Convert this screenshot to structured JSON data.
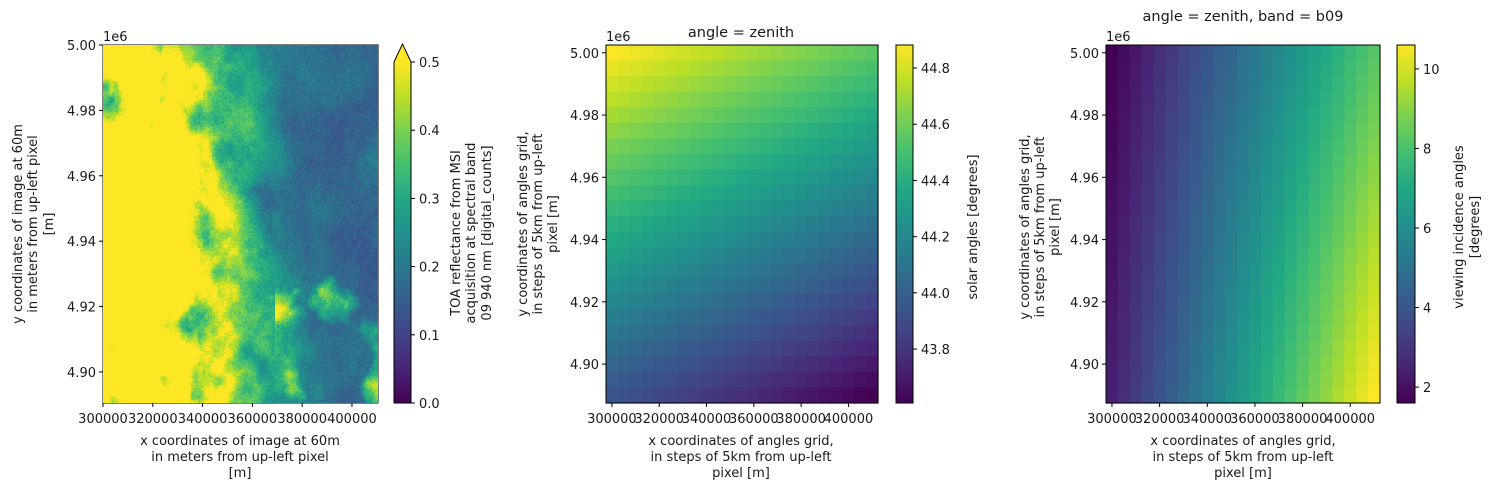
{
  "chart_data": [
    {
      "type": "heatmap",
      "title": "",
      "offset_label": "1e6",
      "cmap": "viridis",
      "xlabel": [
        "x coordinates of image at 60m",
        "in meters from up-left pixel",
        "[m]"
      ],
      "ylabel": [
        "y coordinates of image at 60m",
        "in meters from up-left pixel",
        "[m]"
      ],
      "xlim": [
        300000,
        410460
      ],
      "ylim": [
        4.8905,
        5.0
      ],
      "xticks": {
        "values": [
          300000,
          320000,
          340000,
          360000,
          380000,
          400000
        ],
        "labels": [
          "300000",
          "320000",
          "340000",
          "360000",
          "380000",
          "400000"
        ]
      },
      "yticks": {
        "values": [
          4.9,
          4.92,
          4.94,
          4.96,
          4.98,
          5.0
        ],
        "labels": [
          "4.90",
          "4.92",
          "4.94",
          "4.96",
          "4.98",
          "5.00"
        ]
      },
      "colorbar": {
        "label": [
          "TOA reflectance from MSI",
          "acquisition at spectral band",
          "09 940 nm [digital_counts]"
        ],
        "range": [
          0.0,
          0.5
        ],
        "extend": "max",
        "ticks": {
          "values": [
            0.0,
            0.1,
            0.2,
            0.3,
            0.4,
            0.5
          ],
          "labels": [
            "0.0",
            "0.1",
            "0.2",
            "0.3",
            "0.4",
            "0.5"
          ]
        }
      }
    },
    {
      "type": "heatmap",
      "title": "angle = zenith",
      "offset_label": "1e6",
      "cmap": "viridis",
      "xlabel": [
        "x coordinates of angles grid,",
        "in steps of 5km from up-left",
        "pixel [m]"
      ],
      "ylabel": [
        "y coordinates of angles grid,",
        "in steps of 5km from up-left",
        "pixel [m]"
      ],
      "xlim": [
        297500,
        412500
      ],
      "ylim": [
        4.8875,
        5.0025
      ],
      "grid": {
        "rows": 23,
        "cols": 23,
        "corner_values": {
          "top_left": 44.88,
          "top_right": 44.55,
          "bottom_left": 43.94,
          "bottom_right": 43.61
        }
      },
      "xticks": {
        "values": [
          300000,
          320000,
          340000,
          360000,
          380000,
          400000
        ],
        "labels": [
          "300000",
          "320000",
          "340000",
          "360000",
          "380000",
          "400000"
        ]
      },
      "yticks": {
        "values": [
          4.9,
          4.92,
          4.94,
          4.96,
          4.98,
          5.0
        ],
        "labels": [
          "4.90",
          "4.92",
          "4.94",
          "4.96",
          "4.98",
          "5.00"
        ]
      },
      "colorbar": {
        "label": [
          "solar angles [degrees]"
        ],
        "range": [
          43.608,
          44.882
        ],
        "extend": "neither",
        "ticks": {
          "values": [
            43.8,
            44.0,
            44.2,
            44.4,
            44.6,
            44.8
          ],
          "labels": [
            "43.8",
            "44.0",
            "44.2",
            "44.4",
            "44.6",
            "44.8"
          ]
        }
      }
    },
    {
      "type": "heatmap",
      "title": "angle = zenith, band = b09",
      "offset_label": "1e6",
      "cmap": "viridis",
      "xlabel": [
        "x coordinates of angles grid,",
        "in steps of 5km from up-left",
        "pixel [m]"
      ],
      "ylabel": [
        "y coordinates of angles grid,",
        "in steps of 5km from up-left",
        "pixel [m]"
      ],
      "xlim": [
        297500,
        412500
      ],
      "ylim": [
        4.8875,
        5.0025
      ],
      "grid": {
        "rows": 23,
        "cols": 23,
        "corner_values": {
          "top_left": 1.6,
          "top_right": 8.2,
          "bottom_left": 2.4,
          "bottom_right": 10.6
        }
      },
      "xticks": {
        "values": [
          300000,
          320000,
          340000,
          360000,
          380000,
          400000
        ],
        "labels": [
          "300000",
          "320000",
          "340000",
          "360000",
          "380000",
          "400000"
        ]
      },
      "yticks": {
        "values": [
          4.9,
          4.92,
          4.94,
          4.96,
          4.98,
          5.0
        ],
        "labels": [
          "4.90",
          "4.92",
          "4.94",
          "4.96",
          "4.98",
          "5.00"
        ]
      },
      "colorbar": {
        "label": [
          "viewing incidence angles",
          "[degrees]"
        ],
        "range": [
          1.6,
          10.6
        ],
        "extend": "neither",
        "ticks": {
          "values": [
            2,
            4,
            6,
            8,
            10
          ],
          "labels": [
            "2",
            "4",
            "6",
            "8",
            "10"
          ]
        }
      }
    }
  ]
}
